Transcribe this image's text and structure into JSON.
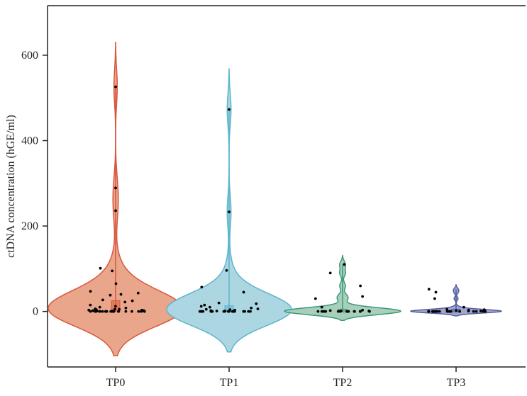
{
  "chart_data": {
    "type": "violin",
    "title": "",
    "xlabel": "",
    "ylabel": "ctDNA concentration (hGE/ml)",
    "ylim": [
      -130,
      716
    ],
    "yticks": [
      0,
      200,
      400,
      600
    ],
    "grid": false,
    "categories": [
      "TP0",
      "TP1",
      "TP2",
      "TP3"
    ],
    "series": [
      {
        "category": "TP0",
        "fill": "#e9a68b",
        "stroke": "#d9573c",
        "values": [
          526,
          289,
          236,
          101,
          95,
          65,
          47,
          43,
          40,
          38,
          27,
          25,
          22,
          15,
          12,
          10,
          8,
          6,
          5,
          5,
          4,
          3,
          3,
          2,
          2,
          1,
          1,
          1,
          0,
          0,
          0,
          0,
          0,
          0,
          0,
          0,
          0,
          0,
          0,
          0,
          0,
          0,
          0,
          0,
          0,
          0,
          0,
          0
        ]
      },
      {
        "category": "TP1",
        "fill": "#acd6e2",
        "stroke": "#5bb5cd",
        "values": [
          473,
          233,
          96,
          57,
          45,
          20,
          18,
          15,
          12,
          10,
          8,
          6,
          5,
          4,
          3,
          2,
          1,
          1,
          0,
          0,
          0,
          0,
          0,
          0,
          0,
          0,
          0,
          0,
          0,
          0,
          0,
          0,
          0,
          0,
          0,
          0,
          0
        ]
      },
      {
        "category": "TP2",
        "fill": "#a8cfba",
        "stroke": "#3a9a7a",
        "values": [
          110,
          90,
          60,
          35,
          30,
          10,
          3,
          2,
          1,
          1,
          0,
          0,
          0,
          0,
          0,
          0,
          0,
          0,
          0,
          0,
          0,
          0,
          0,
          0,
          0,
          0
        ]
      },
      {
        "category": "TP3",
        "fill": "#a0a6cc",
        "stroke": "#5560a0",
        "values": [
          52,
          45,
          30,
          10,
          5,
          4,
          3,
          2,
          1,
          1,
          0,
          0,
          0,
          0,
          0,
          0,
          0,
          0,
          0,
          0,
          0,
          0,
          0,
          0,
          0,
          0,
          0,
          0
        ]
      }
    ]
  }
}
